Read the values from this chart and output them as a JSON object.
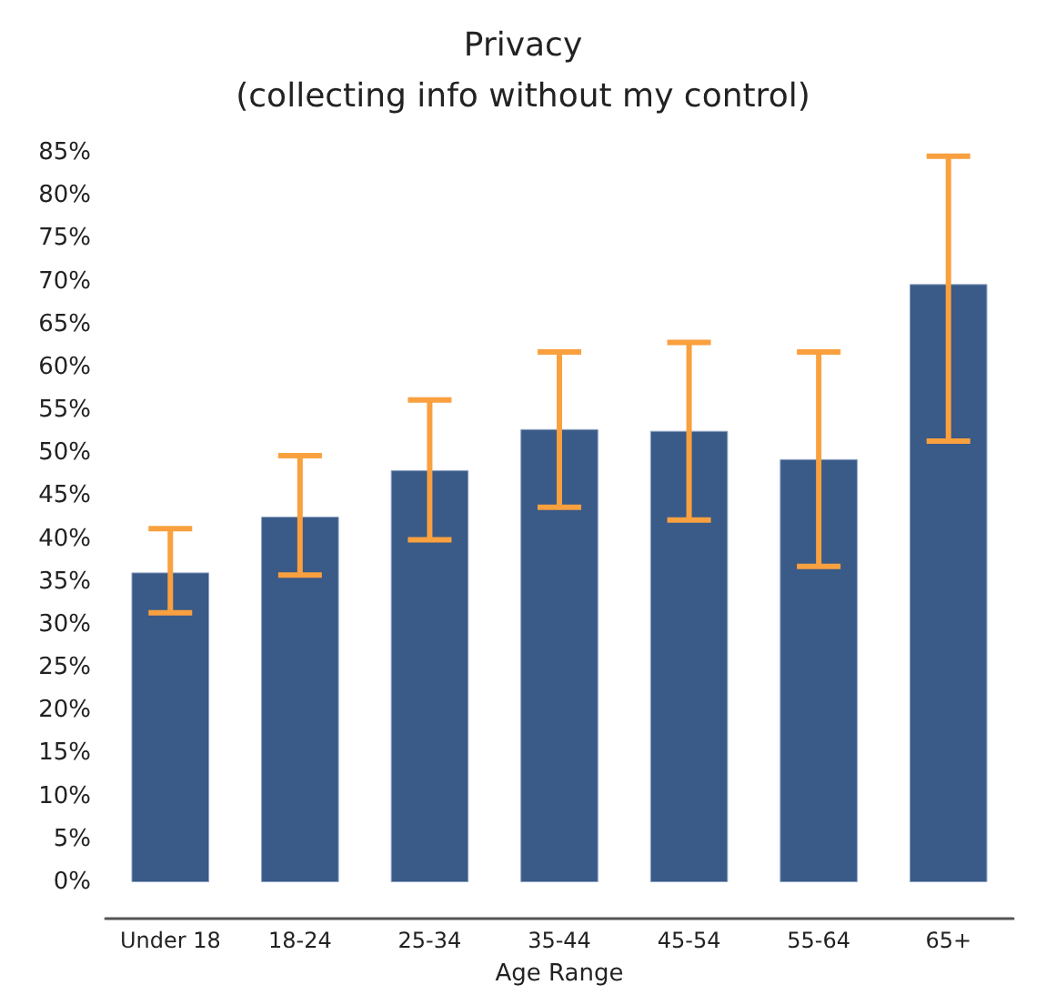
{
  "chart_data": {
    "type": "bar",
    "title": "Privacy\n(collecting info without my control)",
    "xlabel": "Age Range",
    "categories": [
      "Under 18",
      "18-24",
      "25-34",
      "35-44",
      "45-54",
      "55-64",
      "65+"
    ],
    "values": [
      36.1,
      42.6,
      48.0,
      52.8,
      52.6,
      49.3,
      69.7
    ],
    "errors": [
      [
        31.4,
        41.2
      ],
      [
        35.8,
        49.7
      ],
      [
        39.9,
        56.2
      ],
      [
        43.7,
        61.8
      ],
      [
        42.2,
        62.9
      ],
      [
        36.8,
        61.8
      ],
      [
        51.4,
        84.6
      ]
    ],
    "color": "#3a5a87",
    "ylim": [
      0,
      85
    ],
    "yticks": [
      {
        "value": 0,
        "label": "0%"
      },
      {
        "value": 5,
        "label": "5%"
      },
      {
        "value": 10,
        "label": "10%"
      },
      {
        "value": 15,
        "label": "15%"
      },
      {
        "value": 20,
        "label": "20%"
      },
      {
        "value": 25,
        "label": "25%"
      },
      {
        "value": 30,
        "label": "30%"
      },
      {
        "value": 35,
        "label": "35%"
      },
      {
        "value": 40,
        "label": "40%"
      },
      {
        "value": 45,
        "label": "45%"
      },
      {
        "value": 50,
        "label": "50%"
      },
      {
        "value": 55,
        "label": "55%"
      },
      {
        "value": 60,
        "label": "60%"
      },
      {
        "value": 65,
        "label": "65%"
      },
      {
        "value": 70,
        "label": "70%"
      },
      {
        "value": 75,
        "label": "75%"
      },
      {
        "value": 80,
        "label": "80%"
      },
      {
        "value": 85,
        "label": "85%"
      }
    ],
    "grid": false
  }
}
